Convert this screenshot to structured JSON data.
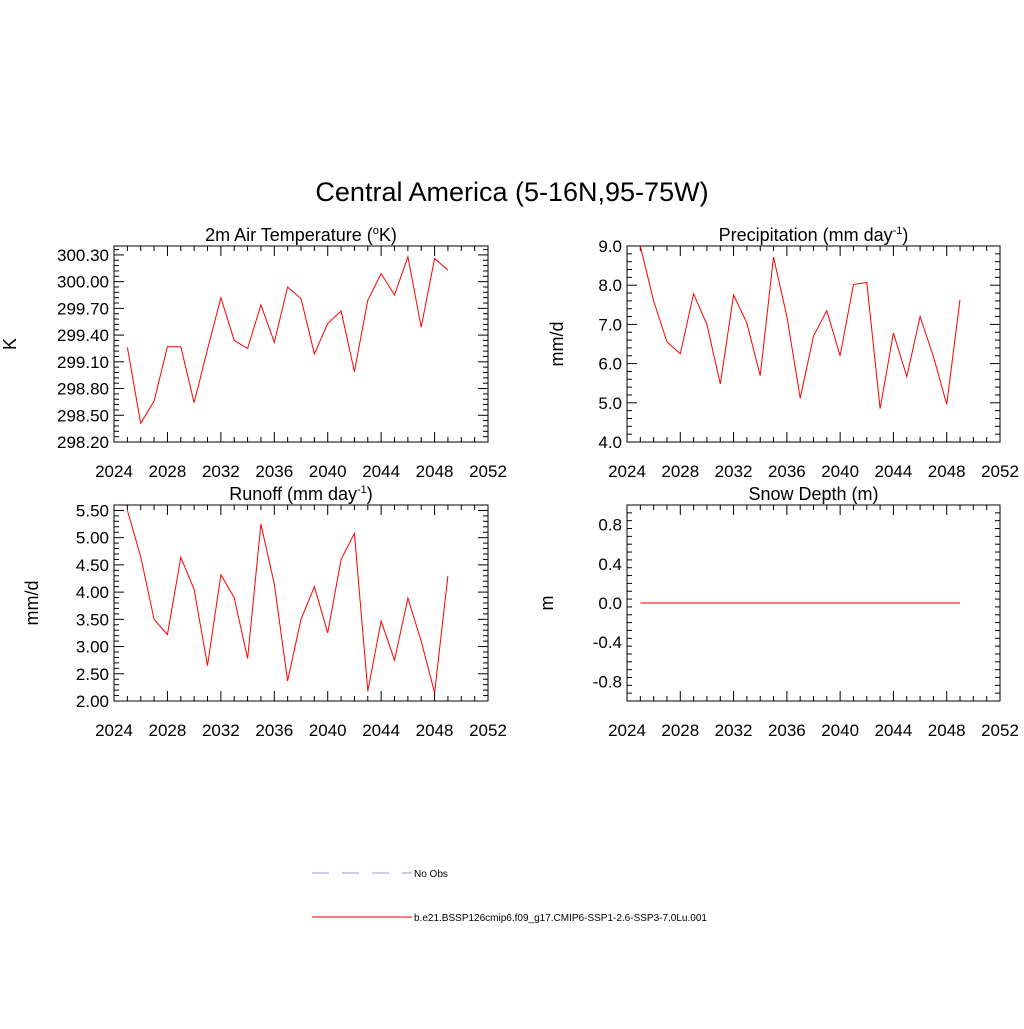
{
  "title": "Central America (5-16N,95-75W)",
  "colors": {
    "series": "#ff0000",
    "obs": "#9999dd",
    "frame": "#000000"
  },
  "legend": {
    "obs_label": "No Obs",
    "model_label": "b.e21.BSSP126cmip6.f09_g17.CMIP6-SSP1-2.6-SSP3-7.0Lu.001"
  },
  "chart_data": [
    {
      "id": "temp",
      "type": "line",
      "title_main": "2m Air Temperature (",
      "title_sup": "o",
      "title_end": "K)",
      "ylabel": "K",
      "xlim": [
        2024,
        2052
      ],
      "ylim": [
        298.2,
        300.4
      ],
      "xticks": [
        2024,
        2028,
        2032,
        2036,
        2040,
        2044,
        2048,
        2052
      ],
      "yticks": [
        "298.20",
        "298.50",
        "298.80",
        "299.10",
        "299.40",
        "299.70",
        "300.00",
        "300.30"
      ],
      "x": [
        2025,
        2026,
        2027,
        2028,
        2029,
        2030,
        2031,
        2032,
        2033,
        2034,
        2035,
        2036,
        2037,
        2038,
        2039,
        2040,
        2041,
        2042,
        2043,
        2044,
        2045,
        2046,
        2047,
        2048,
        2049
      ],
      "y": [
        299.26,
        298.41,
        298.66,
        299.27,
        299.27,
        298.64,
        299.24,
        299.82,
        299.34,
        299.25,
        299.74,
        299.32,
        299.94,
        299.81,
        299.19,
        299.53,
        299.67,
        298.99,
        299.79,
        300.09,
        299.85,
        300.28,
        299.49,
        300.26,
        300.13
      ]
    },
    {
      "id": "precip",
      "type": "line",
      "title_main": "Precipitation (mm day",
      "title_sup": "-1",
      "title_end": ")",
      "ylabel": "mm/d",
      "xlim": [
        2024,
        2052
      ],
      "ylim": [
        4.0,
        9.0
      ],
      "xticks": [
        2024,
        2028,
        2032,
        2036,
        2040,
        2044,
        2048,
        2052
      ],
      "yticks": [
        "4.0",
        "5.0",
        "6.0",
        "7.0",
        "8.0",
        "9.0"
      ],
      "x": [
        2025,
        2026,
        2027,
        2028,
        2029,
        2030,
        2031,
        2032,
        2033,
        2034,
        2035,
        2036,
        2037,
        2038,
        2039,
        2040,
        2041,
        2042,
        2043,
        2044,
        2045,
        2046,
        2047,
        2048,
        2049
      ],
      "y": [
        9.0,
        7.6,
        6.55,
        6.25,
        7.78,
        7.0,
        5.48,
        7.75,
        7.03,
        5.69,
        8.72,
        7.2,
        5.12,
        6.7,
        7.35,
        6.2,
        8.02,
        8.07,
        4.85,
        6.78,
        5.67,
        7.2,
        6.18,
        4.96,
        7.63
      ]
    },
    {
      "id": "runoff",
      "type": "line",
      "title_main": "Runoff (mm day",
      "title_sup": "-1",
      "title_end": ")",
      "ylabel": "mm/d",
      "xlim": [
        2024,
        2052
      ],
      "ylim": [
        2.0,
        5.6
      ],
      "xticks": [
        2024,
        2028,
        2032,
        2036,
        2040,
        2044,
        2048,
        2052
      ],
      "yticks": [
        "2.00",
        "2.50",
        "3.00",
        "3.50",
        "4.00",
        "4.50",
        "5.00",
        "5.50"
      ],
      "x": [
        2025,
        2026,
        2027,
        2028,
        2029,
        2030,
        2031,
        2032,
        2033,
        2034,
        2035,
        2036,
        2037,
        2038,
        2039,
        2040,
        2041,
        2042,
        2043,
        2044,
        2045,
        2046,
        2047,
        2048,
        2049
      ],
      "y": [
        5.5,
        4.65,
        3.5,
        3.22,
        4.64,
        4.05,
        2.65,
        4.32,
        3.9,
        2.78,
        5.25,
        4.15,
        2.37,
        3.5,
        4.1,
        3.25,
        4.6,
        5.08,
        2.18,
        3.47,
        2.75,
        3.89,
        3.1,
        2.15,
        4.3
      ]
    },
    {
      "id": "snow",
      "type": "line",
      "title_main": "Snow Depth (m)",
      "title_sup": "",
      "title_end": "",
      "ylabel": "m",
      "xlim": [
        2024,
        2052
      ],
      "ylim": [
        -1.0,
        1.0
      ],
      "xticks": [
        2024,
        2028,
        2032,
        2036,
        2040,
        2044,
        2048,
        2052
      ],
      "yticks": [
        "-0.8",
        "-0.4",
        "0.0",
        "0.4",
        "0.8"
      ],
      "x": [
        2025,
        2026,
        2027,
        2028,
        2029,
        2030,
        2031,
        2032,
        2033,
        2034,
        2035,
        2036,
        2037,
        2038,
        2039,
        2040,
        2041,
        2042,
        2043,
        2044,
        2045,
        2046,
        2047,
        2048,
        2049
      ],
      "y": [
        0,
        0,
        0,
        0,
        0,
        0,
        0,
        0,
        0,
        0,
        0,
        0,
        0,
        0,
        0,
        0,
        0,
        0,
        0,
        0,
        0,
        0,
        0,
        0,
        0
      ]
    }
  ]
}
